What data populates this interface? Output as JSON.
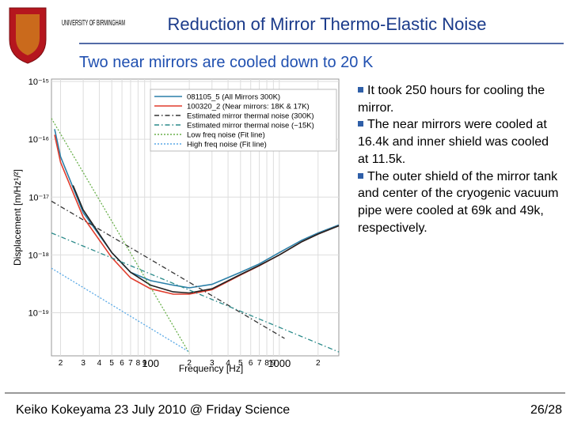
{
  "header": {
    "university": "UNIVERSITY OF BIRMINGHAM",
    "title": "Reduction of Mirror Thermo-Elastic Noise"
  },
  "subtitle": "Two near mirrors are cooled down to 20 K",
  "bullets": [
    "It took 250 hours for cooling the mirror.",
    "The near mirrors were cooled at 16.4k and inner shield was cooled at 11.5k.",
    "The outer shield of the mirror tank and center of the cryogenic vacuum pipe were cooled at 69k and 49k, respectively."
  ],
  "footer": {
    "text": "Keiko Kokeyama 23 July 2010 @ Friday Science",
    "page": "26/28"
  },
  "chart_data": {
    "type": "line",
    "x_label": "Frequency [Hz]",
    "y_label": "Displacement [m/Hz¹/²]",
    "log_x": true,
    "log_y": true,
    "grid": true,
    "legend": "upper right",
    "xlim": [
      17,
      2900
    ],
    "ylim": [
      1.8e-20,
      1.1e-15
    ],
    "xticks": [
      {
        "value": 20,
        "label": "2"
      },
      {
        "value": 30,
        "label": "3"
      },
      {
        "value": 40,
        "label": "4"
      },
      {
        "value": 50,
        "label": "5"
      },
      {
        "value": 60,
        "label": "6"
      },
      {
        "value": 70,
        "label": "7"
      },
      {
        "value": 80,
        "label": "8"
      },
      {
        "value": 90,
        "label": "9"
      },
      100,
      {
        "value": 200,
        "label": "2"
      },
      {
        "value": 300,
        "label": "3"
      },
      {
        "value": 400,
        "label": "4"
      },
      {
        "value": 500,
        "label": "5"
      },
      {
        "value": 600,
        "label": "6"
      },
      {
        "value": 700,
        "label": "7"
      },
      {
        "value": 800,
        "label": "8"
      },
      {
        "value": 900,
        "label": "9"
      },
      1000,
      {
        "value": 2000,
        "label": "2"
      }
    ],
    "yticks": [
      {
        "value": 1e-15,
        "label": "10⁻¹⁵"
      },
      {
        "value": 1e-16,
        "label": "10⁻¹⁶"
      },
      {
        "value": 1e-17,
        "label": "10⁻¹⁷"
      },
      {
        "value": 1e-18,
        "label": "10⁻¹⁸"
      },
      {
        "value": 1e-19,
        "label": "10⁻¹⁹"
      }
    ],
    "series": [
      {
        "name": "081105_5 (All Mirrors 300K)",
        "color": "#2a7fa8",
        "style": "solid",
        "x": [
          18,
          20,
          30,
          50,
          70,
          100,
          150,
          200,
          300,
          500,
          700,
          1000,
          1500,
          2000,
          2900
        ],
        "values": [
          1.5e-16,
          5e-17,
          5.4e-18,
          1.1e-18,
          5e-19,
          3.6e-19,
          3e-19,
          2.7e-19,
          3.1e-19,
          5e-19,
          7e-19,
          1.1e-18,
          1.8e-18,
          2.4e-18,
          3.3e-18
        ]
      },
      {
        "name": "100320_2 (Near mirrors: 18K & 17K)",
        "color": "#e03c2c",
        "style": "solid",
        "x": [
          18,
          20,
          30,
          50,
          70,
          100,
          150,
          200,
          300,
          500,
          700,
          1000,
          1500,
          2000,
          2900
        ],
        "values": [
          1.2e-16,
          4e-17,
          4.5e-18,
          9e-19,
          4e-19,
          2.6e-19,
          2.1e-19,
          2.1e-19,
          2.5e-19,
          4.5e-19,
          6.5e-19,
          1e-18,
          1.7e-18,
          2.3e-18,
          3.2e-18
        ]
      },
      {
        "color": "#222222",
        "style": "solid",
        "x": [
          25,
          30,
          50,
          70,
          100,
          150,
          200,
          300,
          500,
          700,
          1000,
          1500,
          2000,
          2900
        ],
        "values": [
          1.6e-17,
          6e-18,
          1.1e-18,
          5e-19,
          3e-19,
          2.3e-19,
          2.2e-19,
          2.6e-19,
          4.6e-19,
          6.6e-19,
          1e-18,
          1.7e-18,
          2.3e-18,
          3.2e-18
        ]
      },
      {
        "name": "Estimated mirror thermal noise (300K)",
        "color": "#333333",
        "style": "dashdot",
        "x": [
          17,
          1100
        ],
        "values": [
          8.5e-18,
          3.6e-20
        ]
      },
      {
        "name": "Estimated mirror thermal noise (~15K)",
        "color": "#2a8a8a",
        "style": "dashdot",
        "x": [
          17,
          2900
        ],
        "values": [
          2.4e-18,
          2.1e-20
        ]
      },
      {
        "name": "Low freq noise (Fit line)",
        "color": "#6ab04c",
        "style": "dotted",
        "x": [
          17,
          200
        ],
        "values": [
          2.3e-16,
          2e-20
        ]
      },
      {
        "name": "High freq noise (Fit line)",
        "color": "#5aa9e6",
        "style": "dotted",
        "x": [
          17,
          200
        ],
        "values": [
          5.9e-19,
          2.1e-20
        ]
      }
    ]
  }
}
